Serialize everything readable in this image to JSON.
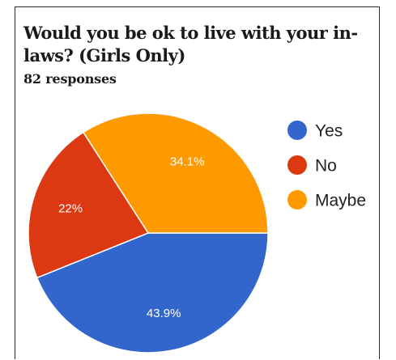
{
  "header": {
    "title": "Would you be ok to live with your in-laws? (Girls Only)",
    "responses": "82 responses"
  },
  "chart_data": {
    "type": "pie",
    "title": "Would you be ok to live with your in-laws? (Girls Only)",
    "total_responses": 82,
    "start_angle_deg": 0,
    "direction": "clockwise",
    "legend_position": "right",
    "slices": [
      {
        "label": "Yes",
        "value": 43.9,
        "display": "43.9%",
        "color": "#3366cc"
      },
      {
        "label": "No",
        "value": 22.0,
        "display": "22%",
        "color": "#dc3912"
      },
      {
        "label": "Maybe",
        "value": 34.1,
        "display": "34.1%",
        "color": "#ff9900"
      }
    ]
  }
}
